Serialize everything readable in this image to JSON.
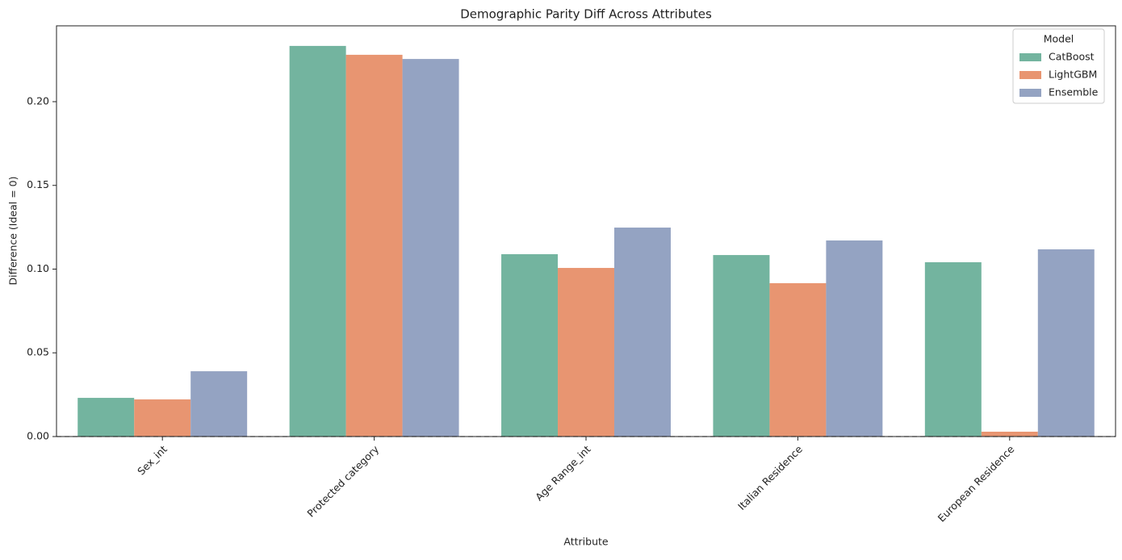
{
  "chart_data": {
    "type": "bar",
    "title": "Demographic Parity Diff Across Attributes",
    "x_label": "Attribute",
    "y_label": "Difference (Ideal = 0)",
    "categories": [
      "Sex_int",
      "Protected category",
      "Age Range_int",
      "Italian Residence",
      "European Residence"
    ],
    "series": [
      {
        "name": "CatBoost",
        "color": "#73b49f",
        "values": [
          0.0231,
          0.2333,
          0.1089,
          0.1084,
          0.1041
        ]
      },
      {
        "name": "LightGBM",
        "color": "#e89571",
        "values": [
          0.0222,
          0.228,
          0.1007,
          0.0916,
          0.0029
        ]
      },
      {
        "name": "Ensemble",
        "color": "#94a3c2",
        "values": [
          0.039,
          0.2255,
          0.1248,
          0.1171,
          0.1118
        ]
      }
    ],
    "legend_title": "Model",
    "legend_position": "upper right",
    "ylim": [
      0,
      0.2453
    ],
    "yticks": [
      {
        "value": 0,
        "label": "0.00"
      },
      0.05,
      {
        "value": 0.1,
        "label": "0.10"
      },
      0.15,
      {
        "value": 0.2,
        "label": "0.20"
      }
    ],
    "reference_line": 0
  }
}
